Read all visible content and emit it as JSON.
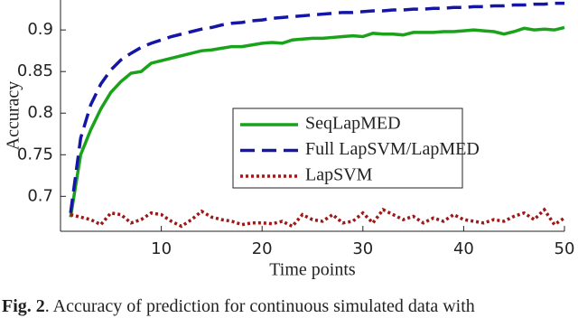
{
  "chart_data": {
    "type": "line",
    "x_label": "Time points",
    "y_label": "Accuracy",
    "caption_label": "Fig. 2",
    "caption": ".  Accuracy of prediction for continuous simulated data with",
    "x": [
      1,
      2,
      3,
      4,
      5,
      6,
      7,
      8,
      9,
      10,
      11,
      12,
      13,
      14,
      15,
      16,
      17,
      18,
      19,
      20,
      21,
      22,
      23,
      24,
      25,
      26,
      27,
      28,
      29,
      30,
      31,
      32,
      33,
      34,
      35,
      36,
      37,
      38,
      39,
      40,
      41,
      42,
      43,
      44,
      45,
      46,
      47,
      48,
      49,
      50
    ],
    "xlim": [
      0,
      50
    ],
    "xticks": [
      10,
      20,
      30,
      40,
      50
    ],
    "ylim": [
      0.658,
      0.936
    ],
    "yticks": [
      0.7,
      0.75,
      0.8,
      0.85,
      0.9
    ],
    "grid": false,
    "legend": "center-right",
    "series": [
      {
        "name": "SeqLapMED",
        "color": "#1aa31a",
        "style": "solid",
        "values": [
          0.675,
          0.75,
          0.78,
          0.805,
          0.825,
          0.838,
          0.848,
          0.85,
          0.86,
          0.863,
          0.866,
          0.869,
          0.872,
          0.875,
          0.876,
          0.878,
          0.88,
          0.88,
          0.882,
          0.884,
          0.885,
          0.884,
          0.888,
          0.889,
          0.89,
          0.89,
          0.891,
          0.892,
          0.893,
          0.892,
          0.896,
          0.895,
          0.895,
          0.894,
          0.897,
          0.897,
          0.897,
          0.898,
          0.898,
          0.899,
          0.9,
          0.899,
          0.898,
          0.895,
          0.898,
          0.902,
          0.9,
          0.901,
          0.9,
          0.903
        ]
      },
      {
        "name": "Full LapSVM/LapMED",
        "color": "#1616a6",
        "style": "dashed",
        "values": [
          0.68,
          0.77,
          0.81,
          0.835,
          0.852,
          0.864,
          0.872,
          0.879,
          0.884,
          0.888,
          0.892,
          0.895,
          0.898,
          0.901,
          0.903,
          0.906,
          0.908,
          0.909,
          0.911,
          0.912,
          0.914,
          0.915,
          0.916,
          0.917,
          0.918,
          0.919,
          0.92,
          0.921,
          0.921,
          0.922,
          0.923,
          0.923,
          0.924,
          0.924,
          0.925,
          0.925,
          0.926,
          0.926,
          0.927,
          0.927,
          0.928,
          0.928,
          0.929,
          0.929,
          0.93,
          0.93,
          0.931,
          0.931,
          0.932,
          0.932
        ]
      },
      {
        "name": "LapSVM",
        "color": "#9e1818",
        "style": "dotted",
        "values": [
          0.678,
          0.675,
          0.672,
          0.666,
          0.68,
          0.678,
          0.668,
          0.672,
          0.68,
          0.678,
          0.67,
          0.664,
          0.672,
          0.682,
          0.675,
          0.672,
          0.67,
          0.666,
          0.668,
          0.668,
          0.667,
          0.67,
          0.664,
          0.678,
          0.672,
          0.67,
          0.678,
          0.668,
          0.67,
          0.68,
          0.668,
          0.684,
          0.678,
          0.672,
          0.676,
          0.668,
          0.674,
          0.67,
          0.678,
          0.672,
          0.67,
          0.668,
          0.672,
          0.67,
          0.676,
          0.68,
          0.672,
          0.684,
          0.666,
          0.674
        ]
      }
    ]
  }
}
